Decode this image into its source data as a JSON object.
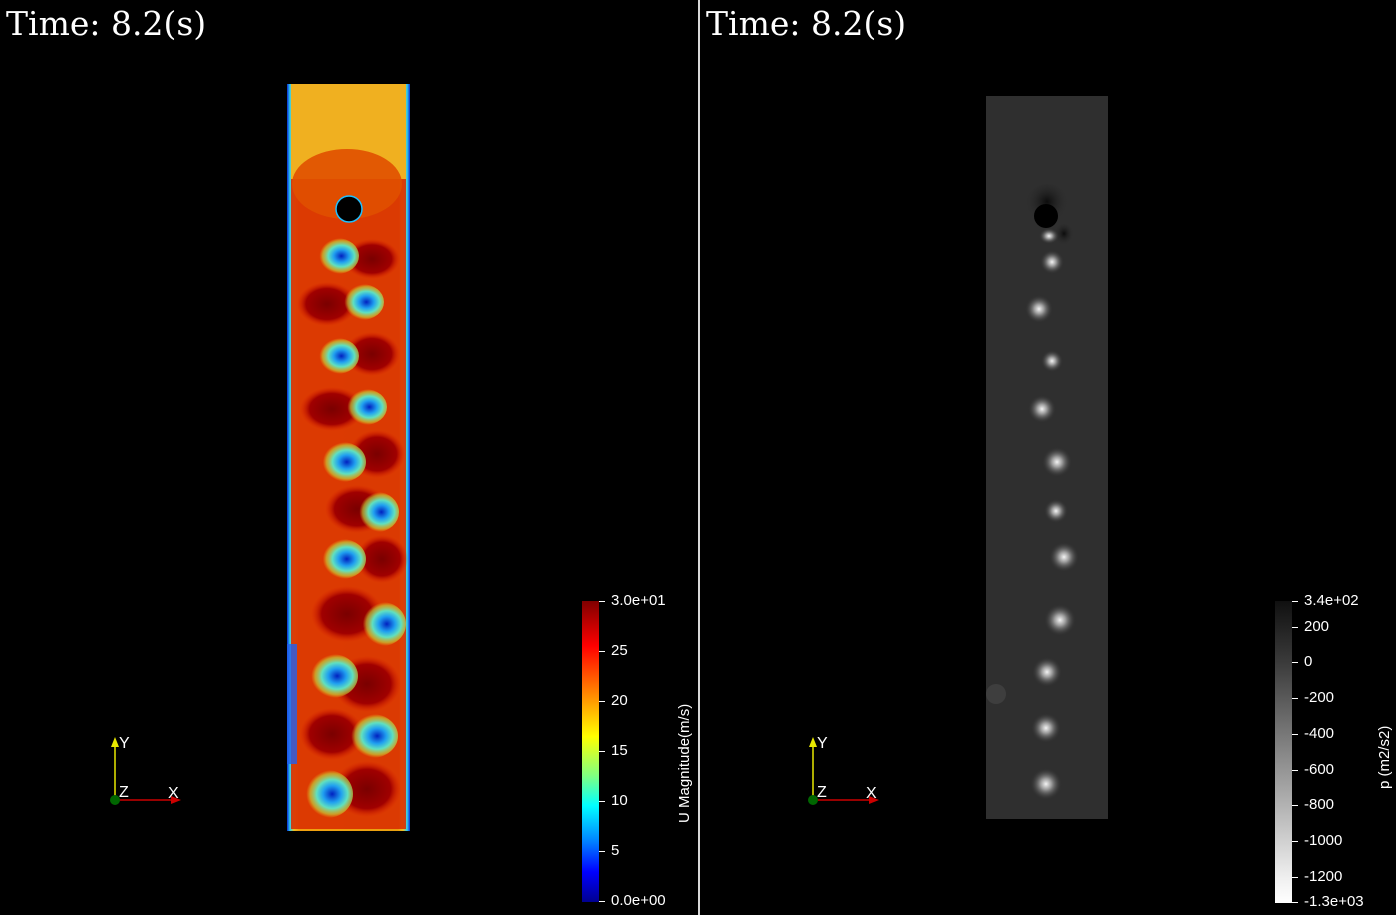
{
  "left_view": {
    "time_label": "Time: 8.2(s)",
    "field": "U Magnitude(m/s)",
    "colorbar": {
      "title": "U Magnitude(m/s)",
      "ticks": [
        "3.0e+01",
        "25",
        "20",
        "15",
        "10",
        "5",
        "0.0e+00"
      ],
      "colormap": "jet",
      "range": [
        0,
        30
      ]
    },
    "axes": {
      "y": "Y",
      "z": "Z",
      "x": "X"
    }
  },
  "right_view": {
    "time_label": "Time: 8.2(s)",
    "field": "p (m2/s2)",
    "colorbar": {
      "title": "p (m2/s2)",
      "ticks": [
        "3.4e+02",
        "200",
        "0",
        "-200",
        "-400",
        "-600",
        "-800",
        "-1000",
        "-1200",
        "-1.3e+03"
      ],
      "colormap": "grayscale (black high, white low)",
      "range": [
        -1300,
        340
      ]
    },
    "axes": {
      "y": "Y",
      "z": "Z",
      "x": "X"
    }
  },
  "colors": {
    "background": "#000000",
    "divider": "#d8d8d8",
    "axis_x": "#cc0000",
    "axis_y": "#e8e800",
    "axis_z": "#006600"
  }
}
